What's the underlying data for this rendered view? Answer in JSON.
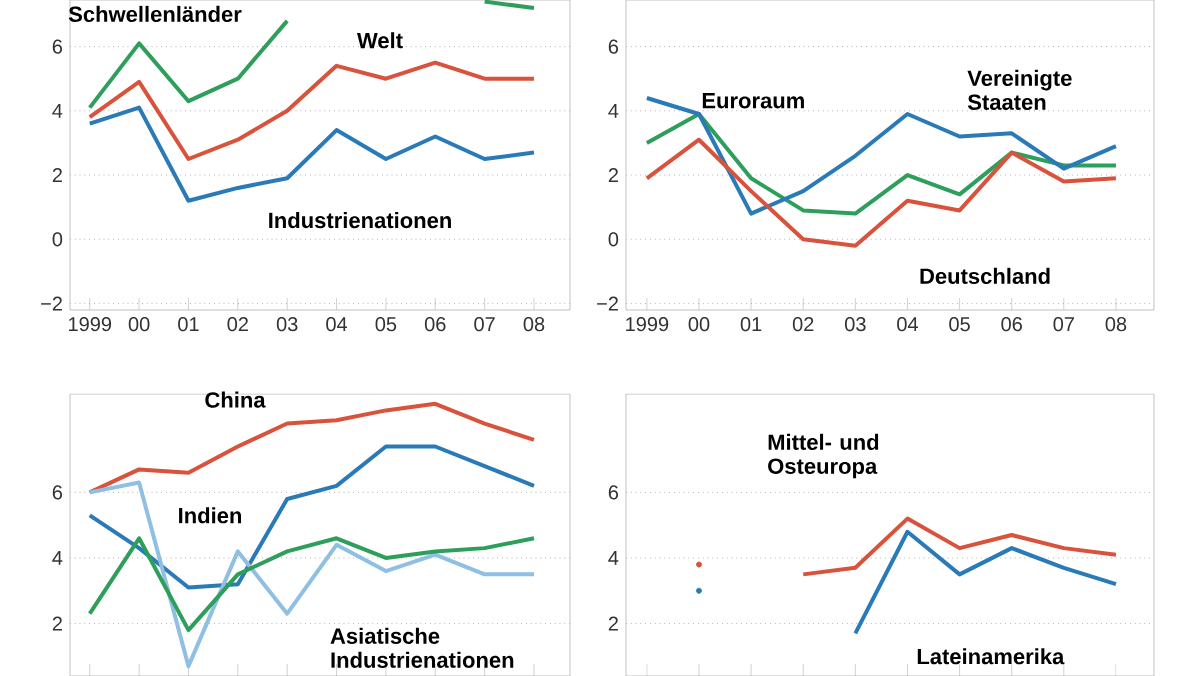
{
  "chart_data": [
    {
      "type": "line",
      "categories": [
        "1999",
        "00",
        "01",
        "02",
        "03",
        "04",
        "05",
        "06",
        "07",
        "08"
      ],
      "series": [
        {
          "name": "Schwellenländer",
          "color": "#2e9e5b",
          "values": [
            4.1,
            6.1,
            4.3,
            5.0,
            6.8,
            null,
            null,
            null,
            7.4,
            7.2
          ]
        },
        {
          "name": "Welt",
          "color": "#d9533c",
          "values": [
            3.8,
            4.9,
            2.5,
            3.1,
            4.0,
            5.4,
            5.0,
            5.5,
            5.0,
            5.0
          ]
        },
        {
          "name": "Industrienationen",
          "color": "#2a7ab8",
          "values": [
            3.6,
            4.1,
            1.2,
            1.6,
            1.9,
            3.4,
            2.5,
            3.2,
            2.5,
            2.7
          ]
        }
      ],
      "ylim": [
        -2.2,
        7.45
      ],
      "yticks": [
        {
          "value": -2,
          "label": "−2"
        },
        0,
        2,
        4,
        6
      ],
      "grid": "y"
    },
    {
      "type": "line",
      "categories": [
        "1999",
        "00",
        "01",
        "02",
        "03",
        "04",
        "05",
        "06",
        "07",
        "08"
      ],
      "series": [
        {
          "name": "Euroraum",
          "color": "#2e9e5b",
          "values": [
            3.0,
            3.9,
            1.9,
            0.9,
            0.8,
            2.0,
            1.4,
            2.7,
            2.3,
            2.3
          ]
        },
        {
          "name": "Vereinigte Staaten",
          "color": "#2a7ab8",
          "values": [
            4.4,
            3.9,
            0.8,
            1.5,
            2.6,
            3.9,
            3.2,
            3.3,
            2.2,
            2.9
          ]
        },
        {
          "name": "Deutschland",
          "color": "#d9533c",
          "values": [
            1.9,
            3.1,
            1.5,
            0.0,
            -0.2,
            1.2,
            0.9,
            2.7,
            1.8,
            1.9
          ]
        }
      ],
      "ylim": [
        -2.2,
        7.45
      ],
      "yticks": [
        {
          "value": -2,
          "label": "−2"
        },
        0,
        2,
        4,
        6
      ],
      "grid": "y"
    },
    {
      "type": "line",
      "categories": [
        null,
        null,
        null,
        null,
        null,
        null,
        null,
        null,
        null,
        null
      ],
      "series": [
        {
          "name": "China",
          "color": "#d9533c",
          "values": [
            6.0,
            6.7,
            6.6,
            7.4,
            8.1,
            8.2,
            8.5,
            8.7,
            8.1,
            7.6
          ]
        },
        {
          "name": "Indien",
          "color": "#2a7ab8",
          "values": [
            5.3,
            4.3,
            3.1,
            3.2,
            5.8,
            6.2,
            7.4,
            7.4,
            6.8,
            6.2
          ]
        },
        {
          "name": "Asiatische Industrienationen",
          "color": "#8fbfe3",
          "values": [
            6.0,
            6.3,
            0.7,
            4.2,
            2.3,
            4.4,
            3.6,
            4.1,
            3.5,
            3.5
          ]
        },
        {
          "color": "#2e9e5b",
          "values": [
            2.3,
            4.6,
            1.8,
            3.5,
            4.2,
            4.6,
            4.0,
            4.2,
            4.3,
            4.6
          ]
        }
      ],
      "ylim": [
        0.4,
        9
      ],
      "yticks": [
        2,
        4,
        6
      ],
      "grid": "y",
      "tick_labels": "y"
    },
    {
      "type": "line",
      "categories": [
        null,
        null,
        null,
        null,
        null,
        null,
        null,
        null,
        null,
        null
      ],
      "series": [
        {
          "name": "Mittel- und Osteuropa",
          "color": "#d9533c",
          "values": [
            null,
            3.8,
            null,
            3.5,
            3.7,
            5.2,
            4.3,
            4.7,
            4.3,
            4.1
          ]
        },
        {
          "name": "Lateinamerika",
          "color": "#2a7ab8",
          "values": [
            null,
            3.0,
            null,
            null,
            1.7,
            4.8,
            3.5,
            4.3,
            3.7,
            3.2
          ]
        }
      ],
      "ylim": [
        0.4,
        9
      ],
      "yticks": [
        2,
        4,
        6
      ],
      "grid": "y",
      "tick_labels": "y"
    }
  ]
}
